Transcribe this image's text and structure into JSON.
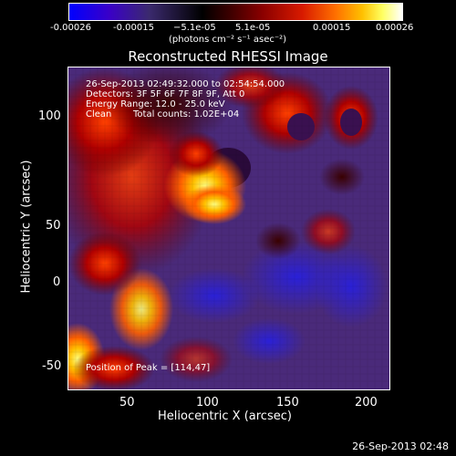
{
  "colorbar": {
    "tick_labels": [
      "-0.00026",
      "-0.00015",
      "−5.1e-05",
      "5.1e-05",
      "0.00015",
      "0.00026"
    ],
    "units": "(photons cm⁻² s⁻¹ asec⁻²)"
  },
  "title": "Reconstructed RHESSI Image",
  "info": {
    "time_range": "26-Sep-2013 02:49:32.000 to 02:54:54.000",
    "detectors": "Detectors: 3F 5F 6F 7F 8F 9F, Att 0",
    "energy": "Energy Range: 12.0 - 25.0 keV",
    "method": "Clean",
    "counts": "Total counts: 1.02E+04",
    "peak": "Position of Peak = [114,47]"
  },
  "x_axis": {
    "label": "Heliocentric X (arcsec)",
    "ticks": [
      "50",
      "100",
      "150",
      "200"
    ]
  },
  "y_axis": {
    "label": "Heliocentric Y (arcsec)",
    "ticks": [
      "100",
      "50",
      "0",
      "-50"
    ]
  },
  "footer_date": "26-Sep-2013 02:48",
  "colors": {
    "background": "#000000",
    "text": "#ffffff"
  }
}
